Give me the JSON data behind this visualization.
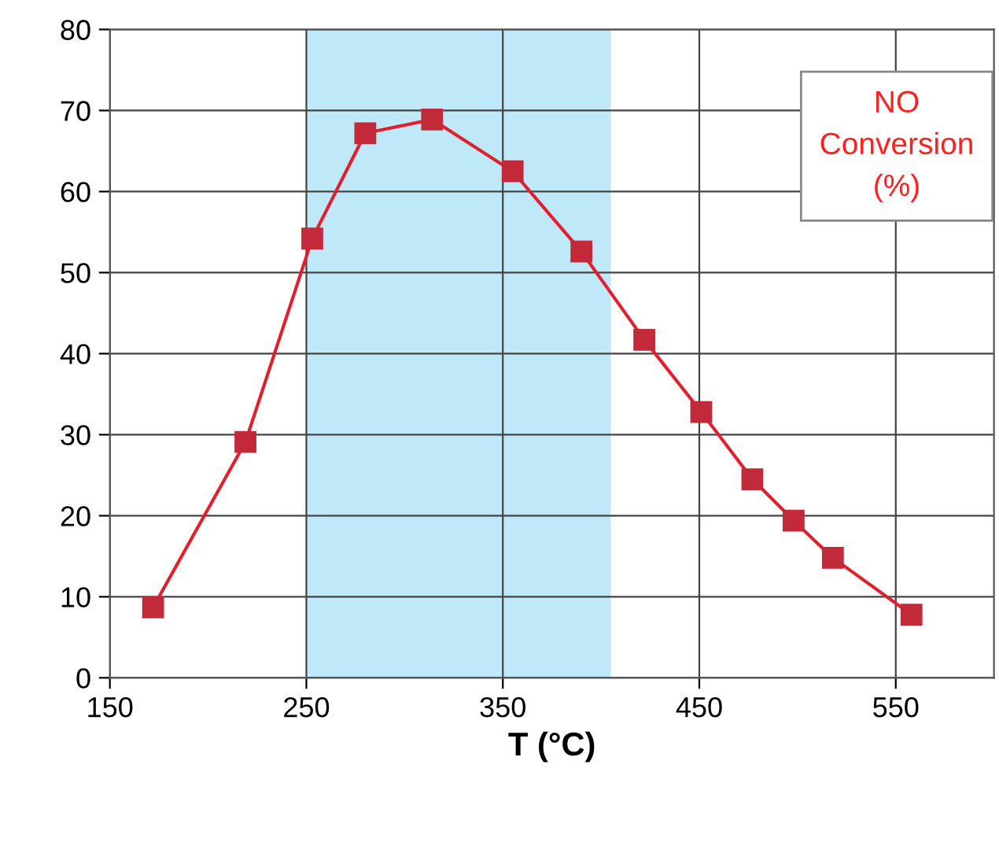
{
  "chart_data": {
    "type": "line",
    "xlabel": "T (°C)",
    "x": [
      172,
      219,
      253,
      280,
      314,
      355,
      390,
      422,
      451,
      477,
      498,
      518,
      558
    ],
    "series": [
      {
        "color": "#e0202e",
        "values": [
          8.7,
          29.1,
          54.2,
          67.2,
          68.9,
          62.5,
          52.6,
          41.7,
          32.8,
          24.5,
          19.4,
          14.8,
          7.8
        ]
      }
    ],
    "xlim": [
      150,
      600
    ],
    "xticks": [
      150,
      250,
      350,
      450,
      550
    ],
    "ylim": [
      0,
      80
    ],
    "yticks": [
      0,
      10,
      20,
      30,
      40,
      50,
      60,
      70,
      80
    ],
    "grid": true,
    "marker": "square",
    "line_style": "solid",
    "bands": [
      {
        "axis": "x",
        "from": 250,
        "to": 405,
        "color": "#bfe8f8"
      }
    ],
    "annotations": [
      "NO\nConversion\n(%)"
    ]
  }
}
